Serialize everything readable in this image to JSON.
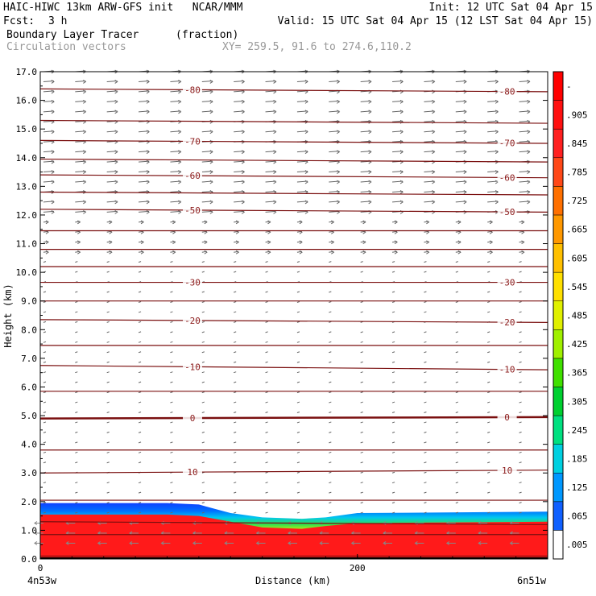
{
  "header": {
    "title_line": "HAIC-HIWC 13km ARW-GFS init   NCAR/MMM",
    "init": "Init: 12 UTC Sat 04 Apr 15",
    "fcst_label": "Fcst:",
    "fcst_value": "3 h",
    "valid": "Valid: 15 UTC Sat 04 Apr 15 (12 LST Sat 04 Apr 15)",
    "field1_name": "Boundary Layer Tracer",
    "field1_units": "(fraction)",
    "field2_name": "Circulation vectors",
    "xy_text": "XY= 259.5, 91.6 to 274.6,110.2"
  },
  "chart_data": {
    "type": "heatmap",
    "title": "Boundary Layer Tracer",
    "units": "(fraction)",
    "xlabel": "Distance (km)",
    "ylabel": "Height (km)",
    "xlim": [
      0,
      320
    ],
    "ylim": [
      0,
      17
    ],
    "x_ticks": [
      {
        "v": 0,
        "label": "0"
      },
      {
        "v": 200,
        "label": "200"
      }
    ],
    "x_end_labels": {
      "left": "4n53w",
      "right": "6n51w"
    },
    "y_ticks": [
      0,
      1,
      2,
      3,
      4,
      5,
      6,
      7,
      8,
      9,
      10,
      11,
      12,
      13,
      14,
      15,
      16,
      17
    ],
    "y_tick_labels": [
      "0.0",
      "1.0",
      "2.0",
      "3.0",
      "4.0",
      "5.0",
      "6.0",
      "7.0",
      "8.0",
      "9.0",
      "10.0",
      "11.0",
      "12.0",
      "13.0",
      "14.0",
      "15.0",
      "16.0",
      "17.0"
    ],
    "grid": false,
    "boundary_layer_top": [
      {
        "x": 0,
        "top": 1.95,
        "red": 1.55
      },
      {
        "x": 80,
        "top": 1.95,
        "red": 1.55
      },
      {
        "x": 100,
        "top": 1.9,
        "red": 1.5
      },
      {
        "x": 120,
        "top": 1.6,
        "red": 1.3
      },
      {
        "x": 140,
        "top": 1.45,
        "red": 1.1
      },
      {
        "x": 165,
        "top": 1.4,
        "red": 1.05
      },
      {
        "x": 180,
        "top": 1.45,
        "red": 1.15
      },
      {
        "x": 200,
        "top": 1.6,
        "red": 1.25
      },
      {
        "x": 320,
        "top": 1.65,
        "red": 1.3
      }
    ],
    "temperature_contours": [
      {
        "value": -80,
        "y_left": 16.4,
        "y_right": 16.3,
        "label": "-80"
      },
      {
        "value": -75,
        "y_left": 15.3,
        "y_right": 15.2,
        "label": ""
      },
      {
        "value": -70,
        "y_left": 14.6,
        "y_right": 14.5,
        "label": "-70"
      },
      {
        "value": -65,
        "y_left": 13.95,
        "y_right": 13.85,
        "label": ""
      },
      {
        "value": -60,
        "y_left": 13.4,
        "y_right": 13.3,
        "label": "-60"
      },
      {
        "value": -55,
        "y_left": 12.8,
        "y_right": 12.7,
        "label": ""
      },
      {
        "value": -50,
        "y_left": 12.2,
        "y_right": 12.1,
        "label": "-50"
      },
      {
        "value": -45,
        "y_left": 11.45,
        "y_right": 11.45,
        "label": ""
      },
      {
        "value": -40,
        "y_left": 10.8,
        "y_right": 10.8,
        "label": ""
      },
      {
        "value": -35,
        "y_left": 10.2,
        "y_right": 10.2,
        "label": ""
      },
      {
        "value": -30,
        "y_left": 9.65,
        "y_right": 9.65,
        "label": "-30"
      },
      {
        "value": -25,
        "y_left": 9.0,
        "y_right": 9.0,
        "label": ""
      },
      {
        "value": -20,
        "y_left": 8.35,
        "y_right": 8.25,
        "label": "-20"
      },
      {
        "value": -15,
        "y_left": 7.45,
        "y_right": 7.45,
        "label": ""
      },
      {
        "value": -10,
        "y_left": 6.75,
        "y_right": 6.6,
        "label": "-10"
      },
      {
        "value": -5,
        "y_left": 5.85,
        "y_right": 5.85,
        "label": ""
      },
      {
        "value": 0,
        "y_left": 4.9,
        "y_right": 4.95,
        "label": "0"
      },
      {
        "value": 5,
        "y_left": 3.8,
        "y_right": 3.8,
        "label": ""
      },
      {
        "value": 10,
        "y_left": 3.0,
        "y_right": 3.1,
        "label": "10"
      },
      {
        "value": 15,
        "y_left": 2.05,
        "y_right": 2.05,
        "label": ""
      },
      {
        "value": 20,
        "y_left": 1.3,
        "y_right": 1.2,
        "label": ""
      },
      {
        "value": 25,
        "y_left": 0.85,
        "y_right": 0.85,
        "label": ""
      },
      {
        "value": 30,
        "y_left": 0.1,
        "y_right": 0.1,
        "label": ""
      }
    ],
    "colorbar": {
      "levels": [
        ".005",
        ".065",
        ".125",
        ".185",
        ".245",
        ".305",
        ".365",
        ".425",
        ".485",
        ".545",
        ".605",
        ".665",
        ".725",
        ".785",
        ".845",
        ".905",
        "-"
      ],
      "colors": [
        "#ffffff",
        "#1060ff",
        "#0098ff",
        "#00d0e0",
        "#00e080",
        "#00d030",
        "#40e000",
        "#a0f000",
        "#e0f000",
        "#ffe000",
        "#ffc000",
        "#ff9800",
        "#ff7000",
        "#ff4818",
        "#ff2020",
        "#ff1010",
        "#ff0000"
      ]
    }
  }
}
